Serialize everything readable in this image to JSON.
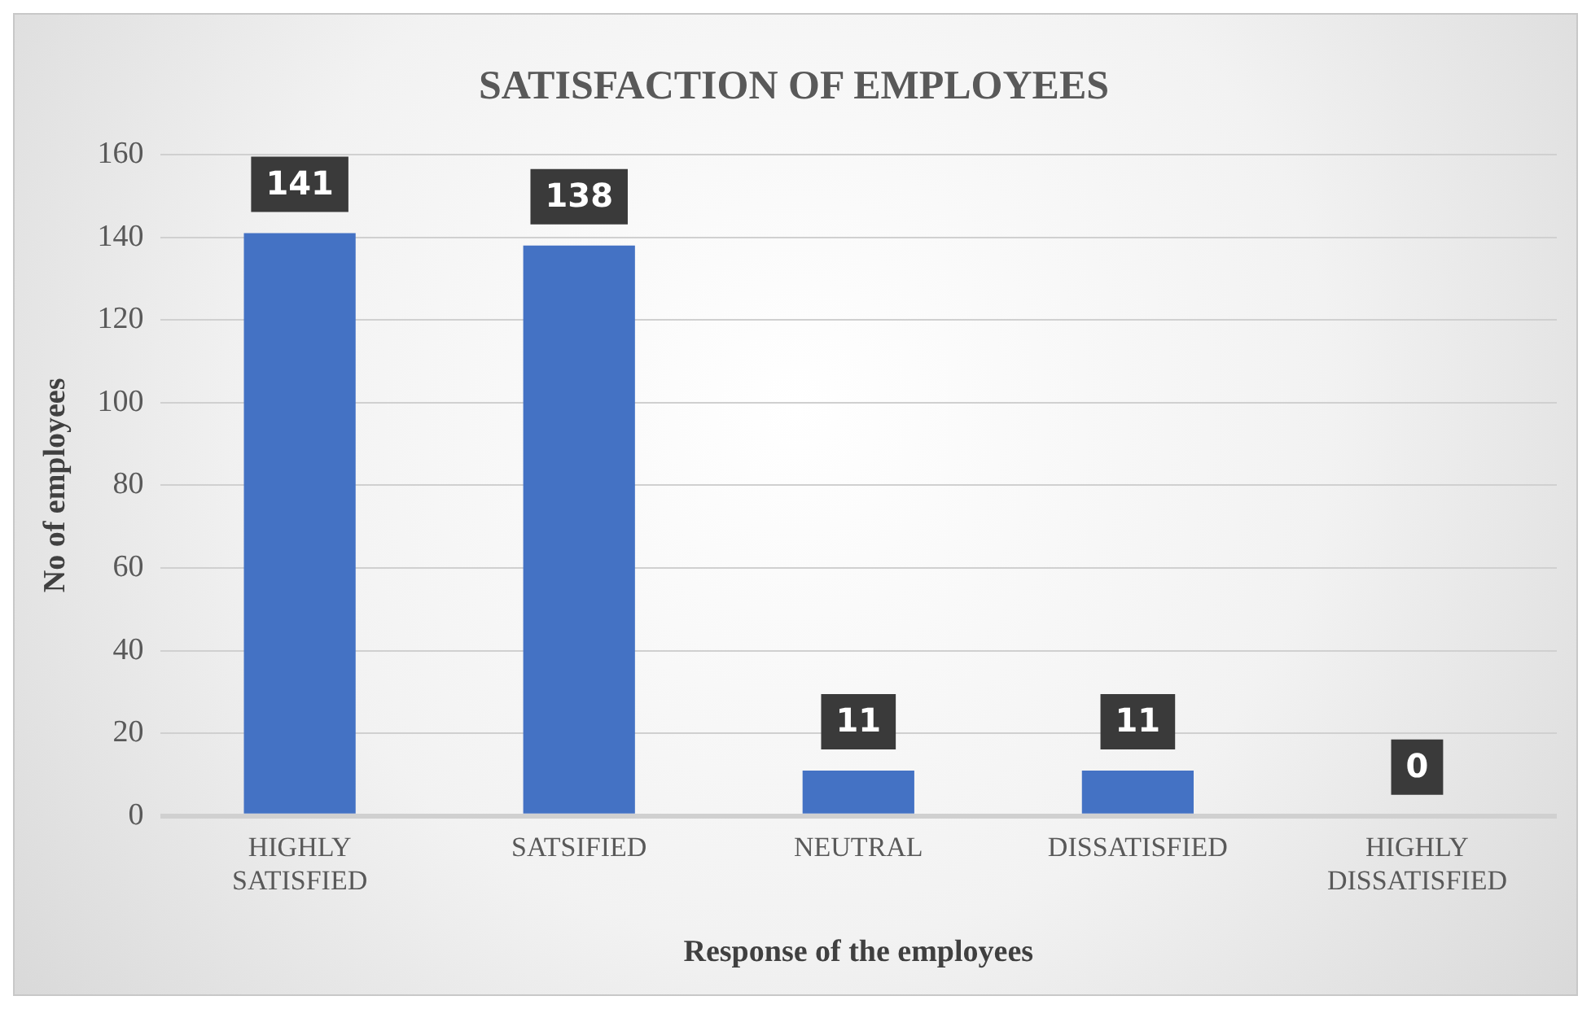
{
  "chart_data": {
    "type": "bar",
    "title": "SATISFACTION OF EMPLOYEES",
    "xlabel": "Response of the employees",
    "ylabel": "No of employees",
    "categories": [
      "HIGHLY SATISFIED",
      "SATSIFIED",
      "NEUTRAL",
      "DISSATISFIED",
      "HIGHLY DISSATISFIED"
    ],
    "values": [
      141,
      138,
      11,
      11,
      0
    ],
    "color": "#4472c4",
    "ylim": [
      0,
      160
    ],
    "yticks": [
      0,
      20,
      40,
      60,
      80,
      100,
      120,
      140,
      160
    ],
    "grid": "y",
    "data_labels": true
  }
}
